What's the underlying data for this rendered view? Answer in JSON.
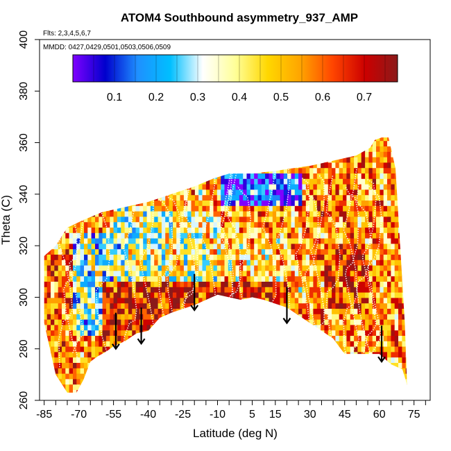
{
  "chart_data": {
    "type": "heatmap",
    "title": "ATOM4 Southbound asymmetry_937_AMP",
    "flights_note": "Flts: 2,3,4,5,6,7",
    "dates_note": "MMDD: 0427,0429,0501,0503,0506,0509",
    "xlabel": "Latitude (deg N)",
    "ylabel": "Theta (C)",
    "xlim": [
      -87,
      82
    ],
    "ylim": [
      260,
      400
    ],
    "x_ticks": [
      -85,
      -70,
      -55,
      -40,
      -25,
      -10,
      5,
      15,
      30,
      45,
      60,
      75
    ],
    "y_ticks": [
      260,
      280,
      300,
      320,
      340,
      360,
      380,
      400
    ],
    "colorbar": {
      "range": [
        0,
        0.78
      ],
      "ticks": [
        "0.1",
        "0.2",
        "0.3",
        "0.4",
        "0.5",
        "0.6",
        "0.7"
      ],
      "tick_values": [
        0.1,
        0.2,
        0.3,
        0.4,
        0.5,
        0.6,
        0.7
      ],
      "colors": [
        "#7f00ff",
        "#0000cd",
        "#1e90ff",
        "#00bfff",
        "#ffffff",
        "#ffff99",
        "#ffd700",
        "#ffa500",
        "#ff4500",
        "#cc0000",
        "#8b1a1a"
      ]
    },
    "upper_boundary": [
      [
        -85,
        316
      ],
      [
        -80,
        320
      ],
      [
        -75,
        327
      ],
      [
        -68,
        330
      ],
      [
        -60,
        333
      ],
      [
        -50,
        335
      ],
      [
        -40,
        337
      ],
      [
        -30,
        340
      ],
      [
        -20,
        343
      ],
      [
        -12,
        346
      ],
      [
        -5,
        348
      ],
      [
        5,
        348
      ],
      [
        15,
        349
      ],
      [
        22,
        350
      ],
      [
        30,
        351
      ],
      [
        40,
        353
      ],
      [
        50,
        355
      ],
      [
        56,
        358
      ],
      [
        58,
        361
      ],
      [
        61,
        362
      ],
      [
        64,
        362
      ],
      [
        67,
        350
      ],
      [
        69,
        320
      ],
      [
        71,
        290
      ],
      [
        72,
        266
      ]
    ],
    "lower_boundary": [
      [
        72,
        266
      ],
      [
        70,
        272
      ],
      [
        65,
        274
      ],
      [
        60,
        278
      ],
      [
        50,
        278
      ],
      [
        45,
        278
      ],
      [
        40,
        284
      ],
      [
        30,
        290
      ],
      [
        20,
        296
      ],
      [
        10,
        299
      ],
      [
        5,
        300
      ],
      [
        0,
        299
      ],
      [
        -10,
        301
      ],
      [
        -20,
        297
      ],
      [
        -30,
        294
      ],
      [
        -35,
        292
      ],
      [
        -40,
        287
      ],
      [
        -45,
        286
      ],
      [
        -50,
        283
      ],
      [
        -55,
        281
      ],
      [
        -58,
        279
      ],
      [
        -62,
        277
      ],
      [
        -65,
        275
      ],
      [
        -68,
        268
      ],
      [
        -71,
        263
      ],
      [
        -75,
        263
      ],
      [
        -80,
        270
      ],
      [
        -85,
        290
      ]
    ],
    "arrows": [
      [
        -54,
        287
      ],
      [
        -43,
        289
      ],
      [
        -20,
        302
      ],
      [
        20,
        297
      ],
      [
        61,
        282
      ]
    ],
    "regions": [
      {
        "lat": [
          -84,
          -72
        ],
        "theta": [
          265,
          318
        ],
        "value": 0.58
      },
      {
        "lat": [
          -74,
          -55
        ],
        "theta": [
          285,
          325
        ],
        "value": 0.3
      },
      {
        "lat": [
          -56,
          -35
        ],
        "theta": [
          300,
          335
        ],
        "value": 0.35
      },
      {
        "lat": [
          -35,
          -10
        ],
        "theta": [
          305,
          332
        ],
        "value": 0.4
      },
      {
        "lat": [
          -10,
          20
        ],
        "theta": [
          305,
          325
        ],
        "value": 0.45
      },
      {
        "lat": [
          -10,
          30
        ],
        "theta": [
          335,
          348
        ],
        "value": 0.12
      },
      {
        "lat": [
          25,
          60
        ],
        "theta": [
          330,
          358
        ],
        "value": 0.56
      },
      {
        "lat": [
          35,
          55
        ],
        "theta": [
          295,
          320
        ],
        "value": 0.64
      },
      {
        "lat": [
          -60,
          20
        ],
        "theta": [
          282,
          305
        ],
        "value": 0.68
      }
    ]
  }
}
